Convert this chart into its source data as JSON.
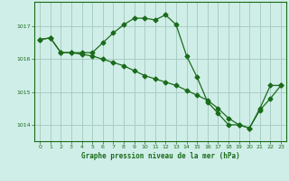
{
  "line1_x": [
    0,
    1,
    2,
    3,
    4,
    5,
    6,
    7,
    8,
    9,
    10,
    11,
    12,
    13,
    14,
    15,
    16,
    17,
    18,
    19,
    20,
    21,
    22,
    23
  ],
  "line1_y": [
    1016.6,
    1016.65,
    1016.2,
    1016.2,
    1016.2,
    1016.2,
    1016.5,
    1016.8,
    1017.05,
    1017.25,
    1017.25,
    1017.2,
    1017.35,
    1017.05,
    1016.1,
    1015.45,
    1014.7,
    1014.35,
    1014.0,
    1014.0,
    1013.9,
    1014.45,
    1014.8,
    1015.2
  ],
  "line2_x": [
    0,
    1,
    2,
    3,
    4,
    5,
    6,
    7,
    8,
    9,
    10,
    11,
    12,
    13,
    14,
    15,
    16,
    17,
    18,
    19,
    20,
    21,
    22,
    23
  ],
  "line2_y": [
    1016.6,
    1016.65,
    1016.2,
    1016.2,
    1016.15,
    1016.1,
    1016.0,
    1015.9,
    1015.8,
    1015.65,
    1015.5,
    1015.4,
    1015.3,
    1015.2,
    1015.05,
    1014.9,
    1014.75,
    1014.5,
    1014.2,
    1014.0,
    1013.9,
    1014.5,
    1015.2,
    1015.2
  ],
  "line_color": "#1a6b1a",
  "bg_color": "#d0eee8",
  "grid_color": "#a8ccc4",
  "xlabel": "Graphe pression niveau de la mer (hPa)",
  "ylim": [
    1013.5,
    1017.75
  ],
  "xlim": [
    -0.5,
    23.5
  ],
  "yticks": [
    1014,
    1015,
    1016,
    1017
  ],
  "xticks": [
    0,
    1,
    2,
    3,
    4,
    5,
    6,
    7,
    8,
    9,
    10,
    11,
    12,
    13,
    14,
    15,
    16,
    17,
    18,
    19,
    20,
    21,
    22,
    23
  ]
}
